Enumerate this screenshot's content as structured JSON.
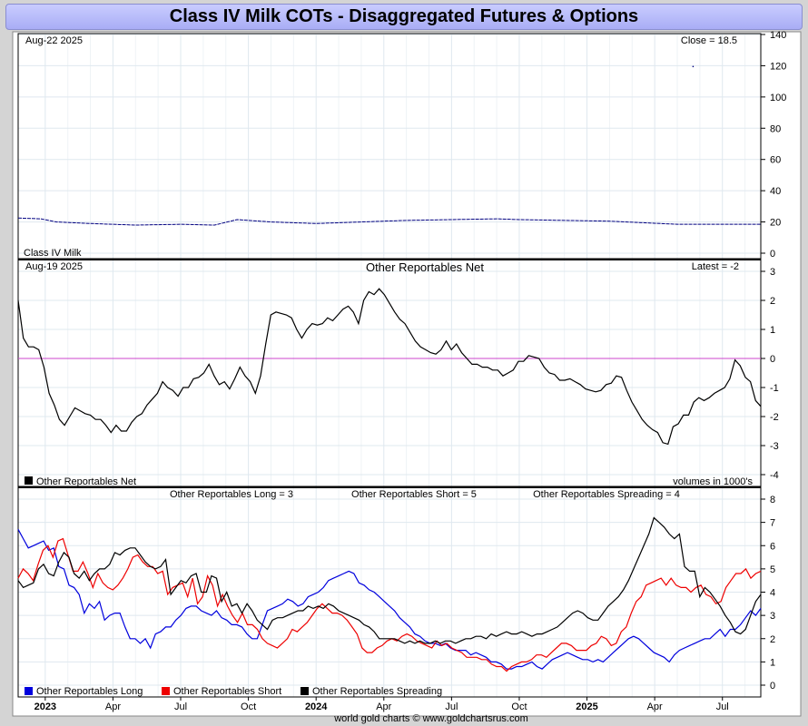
{
  "title": "Class IV Milk COTs - Disaggregated Futures & Options",
  "footer": "world gold charts © www.goldchartsrus.com",
  "colors": {
    "long": "#0000dd",
    "short": "#ee0000",
    "spreading": "#000000",
    "price": "#000080",
    "zero_line": "#cc44cc",
    "grid": "#dfe8ef"
  },
  "x_axis": {
    "months": [
      {
        "label": "2023",
        "t": 0.0,
        "year": true
      },
      {
        "label": "Apr",
        "t": 3.0
      },
      {
        "label": "Jul",
        "t": 6.0
      },
      {
        "label": "Oct",
        "t": 9.0
      },
      {
        "label": "2024",
        "t": 12.0,
        "year": true
      },
      {
        "label": "Apr",
        "t": 15.0
      },
      {
        "label": "Jul",
        "t": 18.0
      },
      {
        "label": "Oct",
        "t": 21.0
      },
      {
        "label": "2025",
        "t": 24.0,
        "year": true
      },
      {
        "label": "Apr",
        "t": 27.0
      },
      {
        "label": "Jul",
        "t": 30.0
      }
    ],
    "range": [
      -1.2,
      31.7
    ]
  },
  "panels": {
    "price": {
      "date": "Aug-22  2025",
      "latest": "Close = 18.5",
      "name": "Class IV Milk",
      "yticks": [
        "140",
        "120",
        "100",
        "80",
        "60",
        "40",
        "20",
        "0"
      ]
    },
    "net": {
      "date": "Aug-19  2025",
      "title": "Other Reportables Net",
      "latest": "Latest = -2",
      "legend": "Other Reportables Net",
      "units": "volumes in 1000's",
      "yticks": [
        "3",
        "2",
        "1",
        "0",
        "-1",
        "-2",
        "-3",
        "-4"
      ]
    },
    "components": {
      "long_label": "Other Reportables Long = 3",
      "short_label": "Other Reportables Short = 5",
      "spread_label": "Other Reportables Spreading = 4",
      "legend_long": "Other Reportables Long",
      "legend_short": "Other Reportables Short",
      "legend_spread": "Other Reportables Spreading",
      "yticks": [
        "8",
        "7",
        "6",
        "5",
        "4",
        "3",
        "2",
        "1",
        "0"
      ]
    }
  },
  "chart_data": [
    {
      "type": "line",
      "title": "Class IV Milk",
      "ylim": [
        0,
        140
      ],
      "series": [
        {
          "name": "Class IV Milk",
          "points": [
            [
              -1.2,
              22.5
            ],
            [
              -0.2,
              22
            ],
            [
              0.5,
              20
            ],
            [
              2,
              19
            ],
            [
              4,
              18
            ],
            [
              6,
              18.5
            ],
            [
              7.5,
              18
            ],
            [
              8.5,
              21.5
            ],
            [
              10,
              20
            ],
            [
              12,
              19
            ],
            [
              14,
              20
            ],
            [
              16,
              21
            ],
            [
              18,
              21.5
            ],
            [
              20,
              22
            ],
            [
              21,
              21.5
            ],
            [
              23,
              21
            ],
            [
              25,
              20.5
            ],
            [
              26.5,
              19.5
            ],
            [
              28,
              18.5
            ],
            [
              30,
              18.5
            ],
            [
              31.7,
              18.5
            ]
          ]
        },
        {
          "name": "",
          "points": [
            [
              28.7,
              119.5
            ]
          ]
        }
      ]
    },
    {
      "type": "line",
      "title": "Other Reportables Net",
      "ylim": [
        -4,
        3
      ],
      "series": [
        {
          "name": "Other Reportables Net",
          "values": [
            2,
            0.7,
            0.4,
            0.4,
            0.3,
            -0.3,
            -1.2,
            -1.6,
            -2.1,
            -2.3,
            -2.0,
            -1.7,
            -1.8,
            -1.9,
            -1.95,
            -2.1,
            -2.1,
            -2.3,
            -2.55,
            -2.3,
            -2.5,
            -2.5,
            -2.2,
            -2.0,
            -1.9,
            -1.6,
            -1.4,
            -1.2,
            -0.8,
            -1.0,
            -1.1,
            -1.3,
            -1.0,
            -1.0,
            -0.7,
            -0.65,
            -0.5,
            -0.2,
            -0.6,
            -0.9,
            -0.8,
            -1.05,
            -0.7,
            -0.3,
            -0.6,
            -0.8,
            -1.2,
            -0.6,
            0.5,
            1.5,
            1.6,
            1.55,
            1.5,
            1.4,
            1.0,
            0.7,
            1.0,
            1.2,
            1.15,
            1.2,
            1.4,
            1.3,
            1.5,
            1.7,
            1.8,
            1.6,
            1.2,
            2.0,
            2.3,
            2.2,
            2.4,
            2.2,
            1.9,
            1.6,
            1.35,
            1.2,
            0.9,
            0.6,
            0.4,
            0.3,
            0.2,
            0.15,
            0.3,
            0.6,
            0.3,
            0.5,
            0.2,
            0.0,
            -0.2,
            -0.2,
            -0.3,
            -0.3,
            -0.4,
            -0.4,
            -0.6,
            -0.5,
            -0.4,
            -0.1,
            -0.1,
            0.1,
            0.05,
            0.0,
            -0.3,
            -0.5,
            -0.55,
            -0.75,
            -0.75,
            -0.7,
            -0.8,
            -0.9,
            -1.05,
            -1.1,
            -1.15,
            -1.1,
            -0.9,
            -0.85,
            -0.6,
            -0.65,
            -1.1,
            -1.5,
            -1.8,
            -2.1,
            -2.3,
            -2.45,
            -2.55,
            -2.9,
            -2.95,
            -2.35,
            -2.25,
            -1.95,
            -1.95,
            -1.5,
            -1.35,
            -1.45,
            -1.35,
            -1.2,
            -1.1,
            -1.0,
            -0.7,
            -0.05,
            -0.25,
            -0.65,
            -0.8,
            -1.45,
            -1.65
          ]
        }
      ]
    },
    {
      "type": "line",
      "title": "",
      "ylim": [
        0,
        8
      ],
      "series": [
        {
          "name": "Other Reportables Long",
          "values": [
            6.7,
            6.3,
            5.9,
            6.0,
            6.1,
            6.2,
            5.8,
            5.9,
            5.1,
            5.0,
            4.3,
            4.2,
            3.9,
            3.1,
            3.5,
            3.3,
            3.6,
            2.8,
            3.0,
            3.1,
            3.1,
            2.5,
            2.0,
            2.0,
            1.8,
            2.0,
            1.6,
            2.2,
            2.3,
            2.5,
            2.5,
            2.8,
            3.0,
            3.3,
            3.4,
            3.4,
            3.2,
            3.1,
            3.0,
            3.2,
            2.9,
            2.8,
            2.6,
            2.6,
            2.5,
            2.2,
            2.0,
            2.0,
            2.6,
            3.2,
            3.3,
            3.4,
            3.5,
            3.7,
            3.6,
            3.4,
            3.5,
            3.8,
            3.9,
            4.0,
            4.2,
            4.5,
            4.6,
            4.7,
            4.8,
            4.9,
            4.8,
            4.4,
            4.3,
            4.1,
            4.0,
            3.8,
            3.6,
            3.4,
            3.2,
            2.9,
            2.7,
            2.5,
            2.2,
            2.1,
            1.9,
            1.8,
            1.8,
            1.7,
            1.8,
            1.6,
            1.5,
            1.5,
            1.5,
            1.3,
            1.4,
            1.3,
            1.2,
            1.0,
            1.0,
            0.9,
            0.7,
            0.7,
            0.8,
            0.8,
            0.9,
            1.0,
            0.8,
            0.7,
            0.9,
            1.1,
            1.2,
            1.3,
            1.4,
            1.3,
            1.2,
            1.1,
            1.1,
            1.0,
            1.1,
            1.0,
            1.2,
            1.4,
            1.6,
            1.8,
            2.0,
            2.1,
            2.0,
            1.8,
            1.6,
            1.4,
            1.3,
            1.2,
            1.0,
            1.3,
            1.5,
            1.6,
            1.7,
            1.8,
            1.9,
            2.0,
            2.0,
            2.2,
            2.4,
            2.1,
            2.4,
            2.4,
            2.6,
            2.9,
            3.2,
            3.0,
            3.3
          ]
        },
        {
          "name": "Other Reportables Short",
          "values": [
            4.6,
            5.0,
            4.8,
            4.5,
            5.2,
            5.8,
            6.0,
            5.5,
            6.2,
            6.3,
            5.6,
            4.9,
            4.9,
            5.3,
            4.8,
            4.2,
            4.8,
            4.4,
            4.2,
            4.1,
            4.3,
            4.6,
            5.0,
            5.5,
            5.6,
            5.3,
            5.1,
            5.1,
            4.8,
            4.9,
            3.9,
            4.2,
            4.3,
            4.4,
            3.8,
            4.6,
            3.5,
            3.8,
            4.7,
            4.3,
            3.4,
            3.9,
            3.4,
            3.0,
            2.7,
            3.1,
            2.6,
            2.6,
            2.4,
            2.0,
            1.8,
            1.7,
            1.6,
            1.8,
            2.0,
            2.4,
            2.3,
            2.5,
            2.7,
            3.0,
            3.3,
            3.5,
            3.3,
            3.1,
            3.1,
            3.0,
            2.8,
            2.5,
            2.2,
            1.6,
            1.4,
            1.4,
            1.6,
            1.7,
            1.9,
            2.0,
            1.9,
            2.1,
            2.2,
            2.1,
            1.9,
            1.8,
            1.7,
            1.6,
            1.9,
            1.7,
            1.8,
            1.6,
            1.5,
            1.4,
            1.2,
            1.2,
            1.2,
            1.1,
            1.1,
            0.9,
            0.8,
            0.8,
            0.6,
            0.8,
            0.9,
            1.0,
            1.0,
            1.1,
            1.3,
            1.3,
            1.2,
            1.4,
            1.6,
            1.8,
            1.8,
            1.7,
            1.5,
            1.5,
            1.5,
            1.7,
            1.8,
            2.1,
            2.0,
            1.7,
            1.8,
            2.3,
            2.5,
            3.1,
            3.6,
            3.8,
            4.3,
            4.4,
            4.5,
            4.6,
            4.3,
            4.6,
            4.3,
            4.2,
            4.2,
            4.0,
            4.2,
            4.3,
            3.9,
            3.8,
            3.5,
            3.6,
            4.2,
            4.5,
            4.8,
            4.8,
            5.0,
            4.6,
            4.8,
            4.9
          ]
        },
        {
          "name": "Other Reportables Spreading",
          "values": [
            4.5,
            4.2,
            4.3,
            4.4,
            5.0,
            5.2,
            4.8,
            4.7,
            5.3,
            5.7,
            5.5,
            4.8,
            4.6,
            4.9,
            4.5,
            4.8,
            5.0,
            5.0,
            5.2,
            5.7,
            5.6,
            5.8,
            5.9,
            5.9,
            5.6,
            5.3,
            5.1,
            5.0,
            5.1,
            5.4,
            3.9,
            4.2,
            4.5,
            4.4,
            4.7,
            4.8,
            4.0,
            4.0,
            4.7,
            4.6,
            3.6,
            4.0,
            3.4,
            3.5,
            3.1,
            3.5,
            3.2,
            2.8,
            2.6,
            2.4,
            2.8,
            2.9,
            2.9,
            3.0,
            3.1,
            3.2,
            3.2,
            3.4,
            3.3,
            3.4,
            3.3,
            3.5,
            3.4,
            3.2,
            3.1,
            3.0,
            2.9,
            2.8,
            2.6,
            2.5,
            2.3,
            2.0,
            2.0,
            2.0,
            2.0,
            1.9,
            1.8,
            1.9,
            1.8,
            1.9,
            1.8,
            1.8,
            1.9,
            1.8,
            1.9,
            1.9,
            1.8,
            1.9,
            2.0,
            2.0,
            2.1,
            2.1,
            2.0,
            2.2,
            2.1,
            2.2,
            2.3,
            2.2,
            2.2,
            2.3,
            2.2,
            2.1,
            2.2,
            2.2,
            2.3,
            2.4,
            2.5,
            2.7,
            2.9,
            3.1,
            3.2,
            3.1,
            2.9,
            2.8,
            2.8,
            3.1,
            3.4,
            3.6,
            3.8,
            4.1,
            4.5,
            5.0,
            5.5,
            6.0,
            6.5,
            7.2,
            7.0,
            6.8,
            6.5,
            6.3,
            6.5,
            5.1,
            4.9,
            4.9,
            3.8,
            4.2,
            4.0,
            3.7,
            3.4,
            3.0,
            2.7,
            2.3,
            2.2,
            2.4,
            3.0,
            3.6,
            3.9
          ]
        }
      ]
    }
  ]
}
